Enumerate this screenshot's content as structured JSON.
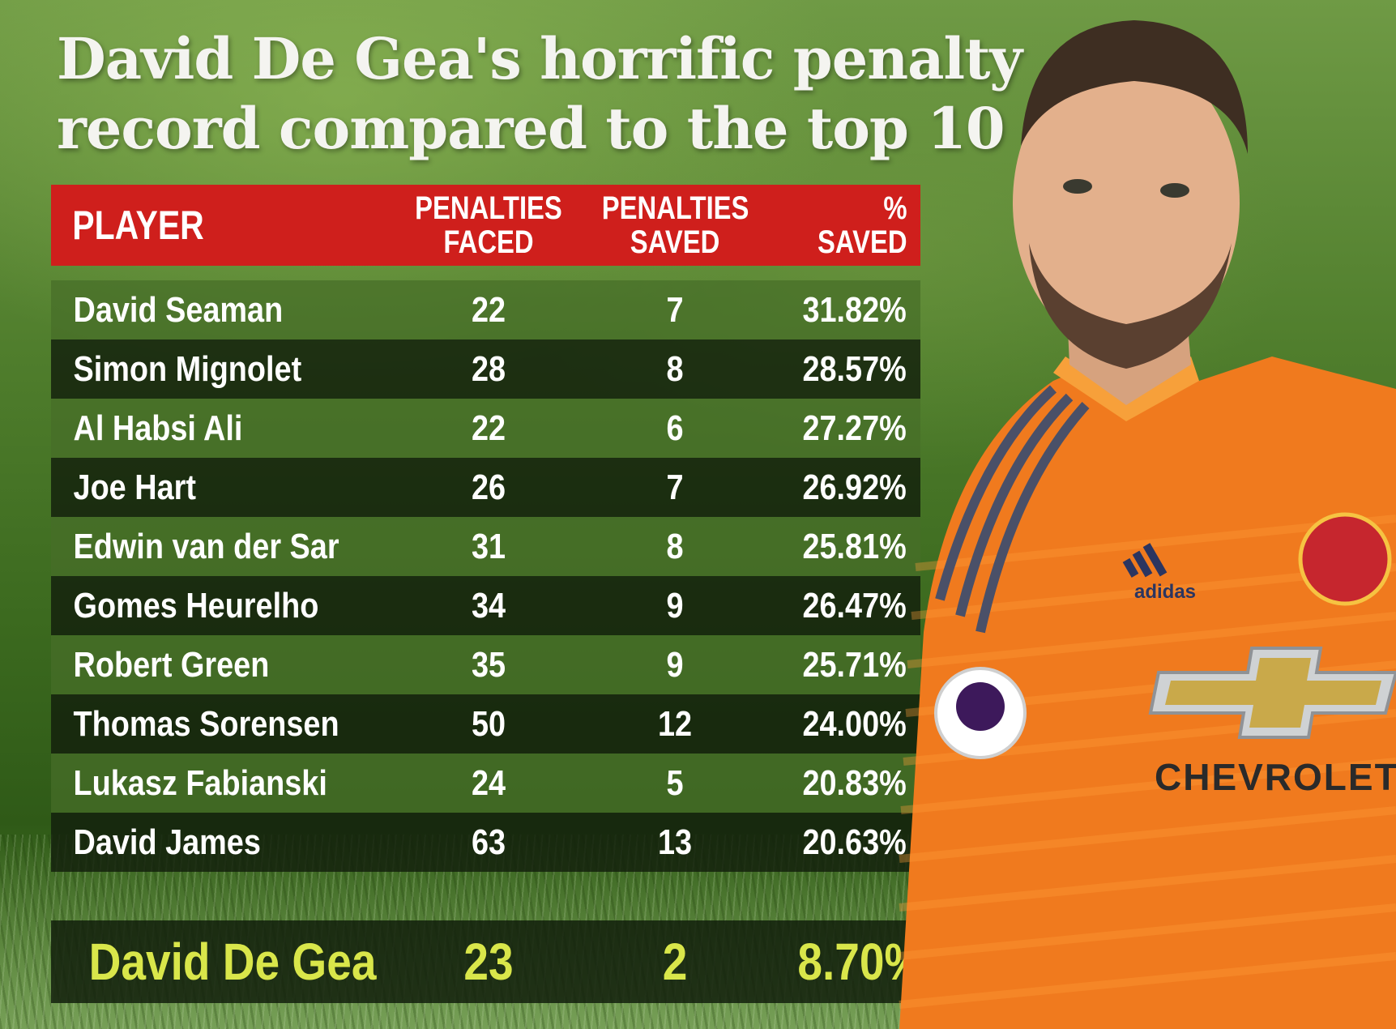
{
  "title_lines": [
    "David De Gea's horrific penalty",
    "record compared to the top 10"
  ],
  "headers": {
    "player": "PLAYER",
    "faced": [
      "PENALTIES",
      "FACED"
    ],
    "saved": [
      "PENALTIES",
      "SAVED"
    ],
    "pct": [
      "%",
      "SAVED"
    ]
  },
  "rows": [
    {
      "player": "David Seaman",
      "faced": "22",
      "saved": "7",
      "pct": "31.82%"
    },
    {
      "player": "Simon Mignolet",
      "faced": "28",
      "saved": "8",
      "pct": "28.57%"
    },
    {
      "player": "Al Habsi Ali",
      "faced": "22",
      "saved": "6",
      "pct": "27.27%"
    },
    {
      "player": "Joe Hart",
      "faced": "26",
      "saved": "7",
      "pct": "26.92%"
    },
    {
      "player": "Edwin van der Sar",
      "faced": "31",
      "saved": "8",
      "pct": "25.81%"
    },
    {
      "player": "Gomes Heurelho",
      "faced": "34",
      "saved": "9",
      "pct": "26.47%"
    },
    {
      "player": "Robert Green",
      "faced": "35",
      "saved": "9",
      "pct": "25.71%"
    },
    {
      "player": "Thomas Sorensen",
      "faced": "50",
      "saved": "12",
      "pct": "24.00%"
    },
    {
      "player": "Lukasz Fabianski",
      "faced": "24",
      "saved": "5",
      "pct": "20.83%"
    },
    {
      "player": "David James",
      "faced": "63",
      "saved": "13",
      "pct": "20.63%"
    }
  ],
  "highlight": {
    "player": "David De Gea",
    "faced": "23",
    "saved": "2",
    "pct": "8.70%"
  },
  "jersey": {
    "brand": "adidas",
    "sponsor": "CHEVROLET",
    "sleeve_badge": "Premier League",
    "crest": "MANCHESTER UNITED"
  },
  "colors": {
    "header_red": "#cf1f1c",
    "highlight_yellow": "#d9e64a",
    "jersey_orange": "#f07a1e"
  },
  "chart_data": {
    "type": "table",
    "title": "David De Gea's horrific penalty record compared to the top 10",
    "columns": [
      "PLAYER",
      "PENALTIES FACED",
      "PENALTIES SAVED",
      "% SAVED"
    ],
    "rows": [
      [
        "David Seaman",
        22,
        7,
        31.82
      ],
      [
        "Simon Mignolet",
        28,
        8,
        28.57
      ],
      [
        "Al Habsi Ali",
        22,
        6,
        27.27
      ],
      [
        "Joe Hart",
        26,
        7,
        26.92
      ],
      [
        "Edwin van der Sar",
        31,
        8,
        25.81
      ],
      [
        "Gomes Heurelho",
        34,
        9,
        26.47
      ],
      [
        "Robert Green",
        35,
        9,
        25.71
      ],
      [
        "Thomas Sorensen",
        50,
        12,
        24.0
      ],
      [
        "Lukasz Fabianski",
        24,
        5,
        20.83
      ],
      [
        "David James",
        63,
        13,
        20.63
      ],
      [
        "David De Gea",
        23,
        2,
        8.7
      ]
    ]
  }
}
